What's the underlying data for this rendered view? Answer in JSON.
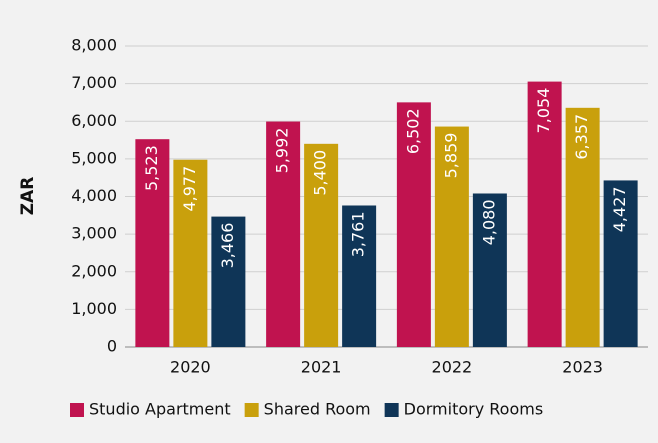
{
  "chart_data": {
    "type": "bar",
    "y_label": "ZAR",
    "categories": [
      "2020",
      "2021",
      "2022",
      "2023"
    ],
    "series": [
      {
        "name": "Studio Apartment",
        "color": "#c0134f",
        "values": [
          5523,
          5992,
          6502,
          7054
        ],
        "value_labels": [
          "5,523",
          "5,992",
          "6,502",
          "7,054"
        ]
      },
      {
        "name": "Shared Room",
        "color": "#c9a00c",
        "values": [
          4977,
          5400,
          5859,
          6357
        ],
        "value_labels": [
          "4,977",
          "5,400",
          "5,859",
          "6,357"
        ]
      },
      {
        "name": "Dormitory Rooms",
        "color": "#0f3557",
        "values": [
          3466,
          3761,
          4080,
          4427
        ],
        "value_labels": [
          "3,466",
          "3,761",
          "4,080",
          "4,427"
        ]
      }
    ],
    "ylim": [
      0,
      8000
    ],
    "yticks": [
      0,
      {
        "value": 1000,
        "label": "1,000"
      },
      {
        "value": 2000,
        "label": "2,000"
      },
      {
        "value": 3000,
        "label": "3,000"
      },
      {
        "value": 4000,
        "label": "4,000"
      },
      {
        "value": 5000,
        "label": "5,000"
      },
      {
        "value": 6000,
        "label": "6,000"
      },
      {
        "value": 7000,
        "label": "7,000"
      },
      {
        "value": 8000,
        "label": "8,000"
      }
    ],
    "grid": true,
    "legend": "bottom"
  }
}
